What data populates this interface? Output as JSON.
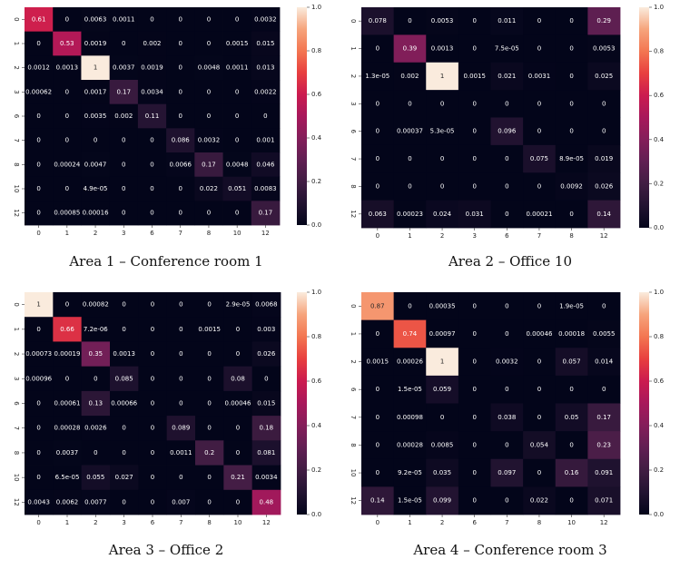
{
  "chart_data": [
    {
      "type": "heatmap",
      "caption": "Area 1 – Conference room 1",
      "x_labels": [
        "0",
        "1",
        "2",
        "3",
        "6",
        "7",
        "8",
        "10",
        "12"
      ],
      "y_labels": [
        "0",
        "1",
        "2",
        "3",
        "6",
        "7",
        "8",
        "10",
        "12"
      ],
      "values": [
        [
          0.61,
          0,
          0.0063,
          0.0011,
          0,
          0,
          0,
          0,
          0.0032
        ],
        [
          0,
          0.53,
          0.0019,
          0,
          0.002,
          0,
          0,
          0.0015,
          0.015
        ],
        [
          0.0012,
          0.0013,
          1,
          0.0037,
          0.0019,
          0,
          0.0048,
          0.0011,
          0.013
        ],
        [
          0.00062,
          0,
          0.0017,
          0.17,
          0.0034,
          0,
          0,
          0,
          0.0022
        ],
        [
          0,
          0,
          0.0035,
          0.002,
          0.11,
          0,
          0,
          0,
          0
        ],
        [
          0,
          0,
          0,
          0,
          0,
          0.086,
          0.0032,
          0,
          0.001
        ],
        [
          0,
          0.00024,
          0.0047,
          0,
          0,
          0.0066,
          0.17,
          0.0048,
          0.046
        ],
        [
          0,
          0,
          4.9e-05,
          0,
          0,
          0,
          0.022,
          0.051,
          0.0083
        ],
        [
          0,
          0.00085,
          0.00016,
          0,
          0,
          0,
          0,
          0,
          0.17
        ]
      ],
      "labels": [
        [
          "0.61",
          "0",
          "0.0063",
          "0.0011",
          "0",
          "0",
          "0",
          "0",
          "0.0032"
        ],
        [
          "0",
          "0.53",
          "0.0019",
          "0",
          "0.002",
          "0",
          "0",
          "0.0015",
          "0.015"
        ],
        [
          "0.0012",
          "0.0013",
          "1",
          "0.0037",
          "0.0019",
          "0",
          "0.0048",
          "0.0011",
          "0.013"
        ],
        [
          "0.00062",
          "0",
          "0.0017",
          "0.17",
          "0.0034",
          "0",
          "0",
          "0",
          "0.0022"
        ],
        [
          "0",
          "0",
          "0.0035",
          "0.002",
          "0.11",
          "0",
          "0",
          "0",
          "0"
        ],
        [
          "0",
          "0",
          "0",
          "0",
          "0",
          "0.086",
          "0.0032",
          "0",
          "0.001"
        ],
        [
          "0",
          "0.00024",
          "0.0047",
          "0",
          "0",
          "0.0066",
          "0.17",
          "0.0048",
          "0.046"
        ],
        [
          "0",
          "0",
          "4.9e-05",
          "0",
          "0",
          "0",
          "0.022",
          "0.051",
          "0.0083"
        ],
        [
          "0",
          "0.00085",
          "0.00016",
          "0",
          "0",
          "0",
          "0",
          "0",
          "0.17"
        ]
      ],
      "colorbar_ticks": [
        "0.0",
        "0.2",
        "0.4",
        "0.6",
        "0.8",
        "1.0"
      ],
      "vmin": 0,
      "vmax": 1
    },
    {
      "type": "heatmap",
      "caption": "Area 2 – Office 10",
      "x_labels": [
        "0",
        "1",
        "2",
        "3",
        "6",
        "7",
        "8",
        "12"
      ],
      "y_labels": [
        "0",
        "1",
        "2",
        "3",
        "6",
        "7",
        "8",
        "12"
      ],
      "values": [
        [
          0.078,
          0,
          0.0053,
          0,
          0.011,
          0,
          0,
          0.29
        ],
        [
          0,
          0.39,
          0.0013,
          0,
          7.5e-05,
          0,
          0,
          0.0053
        ],
        [
          1.3e-05,
          0.002,
          1,
          0.0015,
          0.021,
          0.0031,
          0,
          0.025
        ],
        [
          0,
          0,
          0,
          0,
          0,
          0,
          0,
          0
        ],
        [
          0,
          0.00037,
          5.3e-05,
          0,
          0.096,
          0,
          0,
          0
        ],
        [
          0,
          0,
          0,
          0,
          0,
          0.075,
          8.9e-05,
          0.019
        ],
        [
          0,
          0,
          0,
          0,
          0,
          0,
          0.0092,
          0.026
        ],
        [
          0.063,
          0.00023,
          0.024,
          0.031,
          0,
          0.00021,
          0,
          0.14
        ]
      ],
      "labels": [
        [
          "0.078",
          "0",
          "0.0053",
          "0",
          "0.011",
          "0",
          "0",
          "0.29"
        ],
        [
          "0",
          "0.39",
          "0.0013",
          "0",
          "7.5e-05",
          "0",
          "0",
          "0.0053"
        ],
        [
          "1.3e-05",
          "0.002",
          "1",
          "0.0015",
          "0.021",
          "0.0031",
          "0",
          "0.025"
        ],
        [
          "0",
          "0",
          "0",
          "0",
          "0",
          "0",
          "0",
          "0"
        ],
        [
          "0",
          "0.00037",
          "5.3e-05",
          "0",
          "0.096",
          "0",
          "0",
          "0"
        ],
        [
          "0",
          "0",
          "0",
          "0",
          "0",
          "0.075",
          "8.9e-05",
          "0.019"
        ],
        [
          "0",
          "0",
          "0",
          "0",
          "0",
          "0",
          "0.0092",
          "0.026"
        ],
        [
          "0.063",
          "0.00023",
          "0.024",
          "0.031",
          "0",
          "0.00021",
          "0",
          "0.14"
        ]
      ],
      "colorbar_ticks": [
        "0.0",
        "0.2",
        "0.4",
        "0.6",
        "0.8",
        "1.0"
      ],
      "vmin": 0,
      "vmax": 1
    },
    {
      "type": "heatmap",
      "caption": "Area 3 – Office 2",
      "x_labels": [
        "0",
        "1",
        "2",
        "3",
        "6",
        "7",
        "8",
        "10",
        "12"
      ],
      "y_labels": [
        "0",
        "1",
        "2",
        "3",
        "6",
        "7",
        "8",
        "10",
        "12"
      ],
      "values": [
        [
          1,
          0,
          0.00082,
          0,
          0,
          0,
          0,
          2.9e-05,
          0.0068
        ],
        [
          0,
          0.66,
          7.2e-06,
          0,
          0,
          0,
          0.0015,
          0,
          0.003
        ],
        [
          0.00073,
          0.00019,
          0.35,
          0.0013,
          0,
          0,
          0,
          0,
          0.026
        ],
        [
          0.00096,
          0,
          0,
          0.085,
          0,
          0,
          0,
          0.08,
          0
        ],
        [
          0,
          0.00061,
          0.13,
          0.00066,
          0,
          0,
          0,
          0.00046,
          0.015
        ],
        [
          0,
          0.00028,
          0.0026,
          0,
          0,
          0.089,
          0,
          0,
          0.18
        ],
        [
          0,
          0.0037,
          0,
          0,
          0,
          0.0011,
          0.2,
          0,
          0.081
        ],
        [
          0,
          6.5e-05,
          0.055,
          0.027,
          0,
          0,
          0,
          0.21,
          0.0034
        ],
        [
          0.0043,
          0.0062,
          0.0077,
          0,
          0,
          0.007,
          0,
          0,
          0.48
        ]
      ],
      "labels": [
        [
          "1",
          "0",
          "0.00082",
          "0",
          "0",
          "0",
          "0",
          "2.9e-05",
          "0.0068"
        ],
        [
          "0",
          "0.66",
          "7.2e-06",
          "0",
          "0",
          "0",
          "0.0015",
          "0",
          "0.003"
        ],
        [
          "0.00073",
          "0.00019",
          "0.35",
          "0.0013",
          "0",
          "0",
          "0",
          "0",
          "0.026"
        ],
        [
          "0.00096",
          "0",
          "0",
          "0.085",
          "0",
          "0",
          "0",
          "0.08",
          "0"
        ],
        [
          "0",
          "0.00061",
          "0.13",
          "0.00066",
          "0",
          "0",
          "0",
          "0.00046",
          "0.015"
        ],
        [
          "0",
          "0.00028",
          "0.0026",
          "0",
          "0",
          "0.089",
          "0",
          "0",
          "0.18"
        ],
        [
          "0",
          "0.0037",
          "0",
          "0",
          "0",
          "0.0011",
          "0.2",
          "0",
          "0.081"
        ],
        [
          "0",
          "6.5e-05",
          "0.055",
          "0.027",
          "0",
          "0",
          "0",
          "0.21",
          "0.0034"
        ],
        [
          "0.0043",
          "0.0062",
          "0.0077",
          "0",
          "0",
          "0.007",
          "0",
          "0",
          "0.48"
        ]
      ],
      "colorbar_ticks": [
        "0.0",
        "0.2",
        "0.4",
        "0.6",
        "0.8",
        "1.0"
      ],
      "vmin": 0,
      "vmax": 1
    },
    {
      "type": "heatmap",
      "caption": "Area 4 – Conference room 3",
      "x_labels": [
        "0",
        "1",
        "2",
        "6",
        "7",
        "8",
        "10",
        "12"
      ],
      "y_labels": [
        "0",
        "1",
        "2",
        "6",
        "7",
        "8",
        "10",
        "12"
      ],
      "values": [
        [
          0.87,
          0,
          0.00035,
          0,
          0,
          0,
          1.9e-05,
          0
        ],
        [
          0,
          0.74,
          0.00097,
          0,
          0,
          0.00046,
          0.00018,
          0.0055
        ],
        [
          0.0015,
          0.00026,
          1,
          0,
          0.0032,
          0,
          0.057,
          0.014
        ],
        [
          0,
          1.5e-05,
          0.059,
          0,
          0,
          0,
          0,
          0
        ],
        [
          0,
          0.00098,
          0,
          0,
          0.038,
          0,
          0.05,
          0.17
        ],
        [
          0,
          0.00028,
          0.0085,
          0,
          0,
          0.054,
          0,
          0.23
        ],
        [
          0,
          9.2e-05,
          0.035,
          0,
          0.097,
          0,
          0.16,
          0.091
        ],
        [
          0.14,
          1.5e-05,
          0.099,
          0,
          0,
          0.022,
          0,
          0.071
        ]
      ],
      "labels": [
        [
          "0.87",
          "0",
          "0.00035",
          "0",
          "0",
          "0",
          "1.9e-05",
          "0"
        ],
        [
          "0",
          "0.74",
          "0.00097",
          "0",
          "0",
          "0.00046",
          "0.00018",
          "0.0055"
        ],
        [
          "0.0015",
          "0.00026",
          "1",
          "0",
          "0.0032",
          "0",
          "0.057",
          "0.014"
        ],
        [
          "0",
          "1.5e-05",
          "0.059",
          "0",
          "0",
          "0",
          "0",
          "0"
        ],
        [
          "0",
          "0.00098",
          "0",
          "0",
          "0.038",
          "0",
          "0.05",
          "0.17"
        ],
        [
          "0",
          "0.00028",
          "0.0085",
          "0",
          "0",
          "0.054",
          "0",
          "0.23"
        ],
        [
          "0",
          "9.2e-05",
          "0.035",
          "0",
          "0.097",
          "0",
          "0.16",
          "0.091"
        ],
        [
          "0.14",
          "1.5e-05",
          "0.099",
          "0",
          "0",
          "0.022",
          "0",
          "0.071"
        ]
      ],
      "colorbar_ticks": [
        "0.0",
        "0.2",
        "0.4",
        "0.6",
        "0.8",
        "1.0"
      ],
      "vmin": 0,
      "vmax": 1
    }
  ]
}
